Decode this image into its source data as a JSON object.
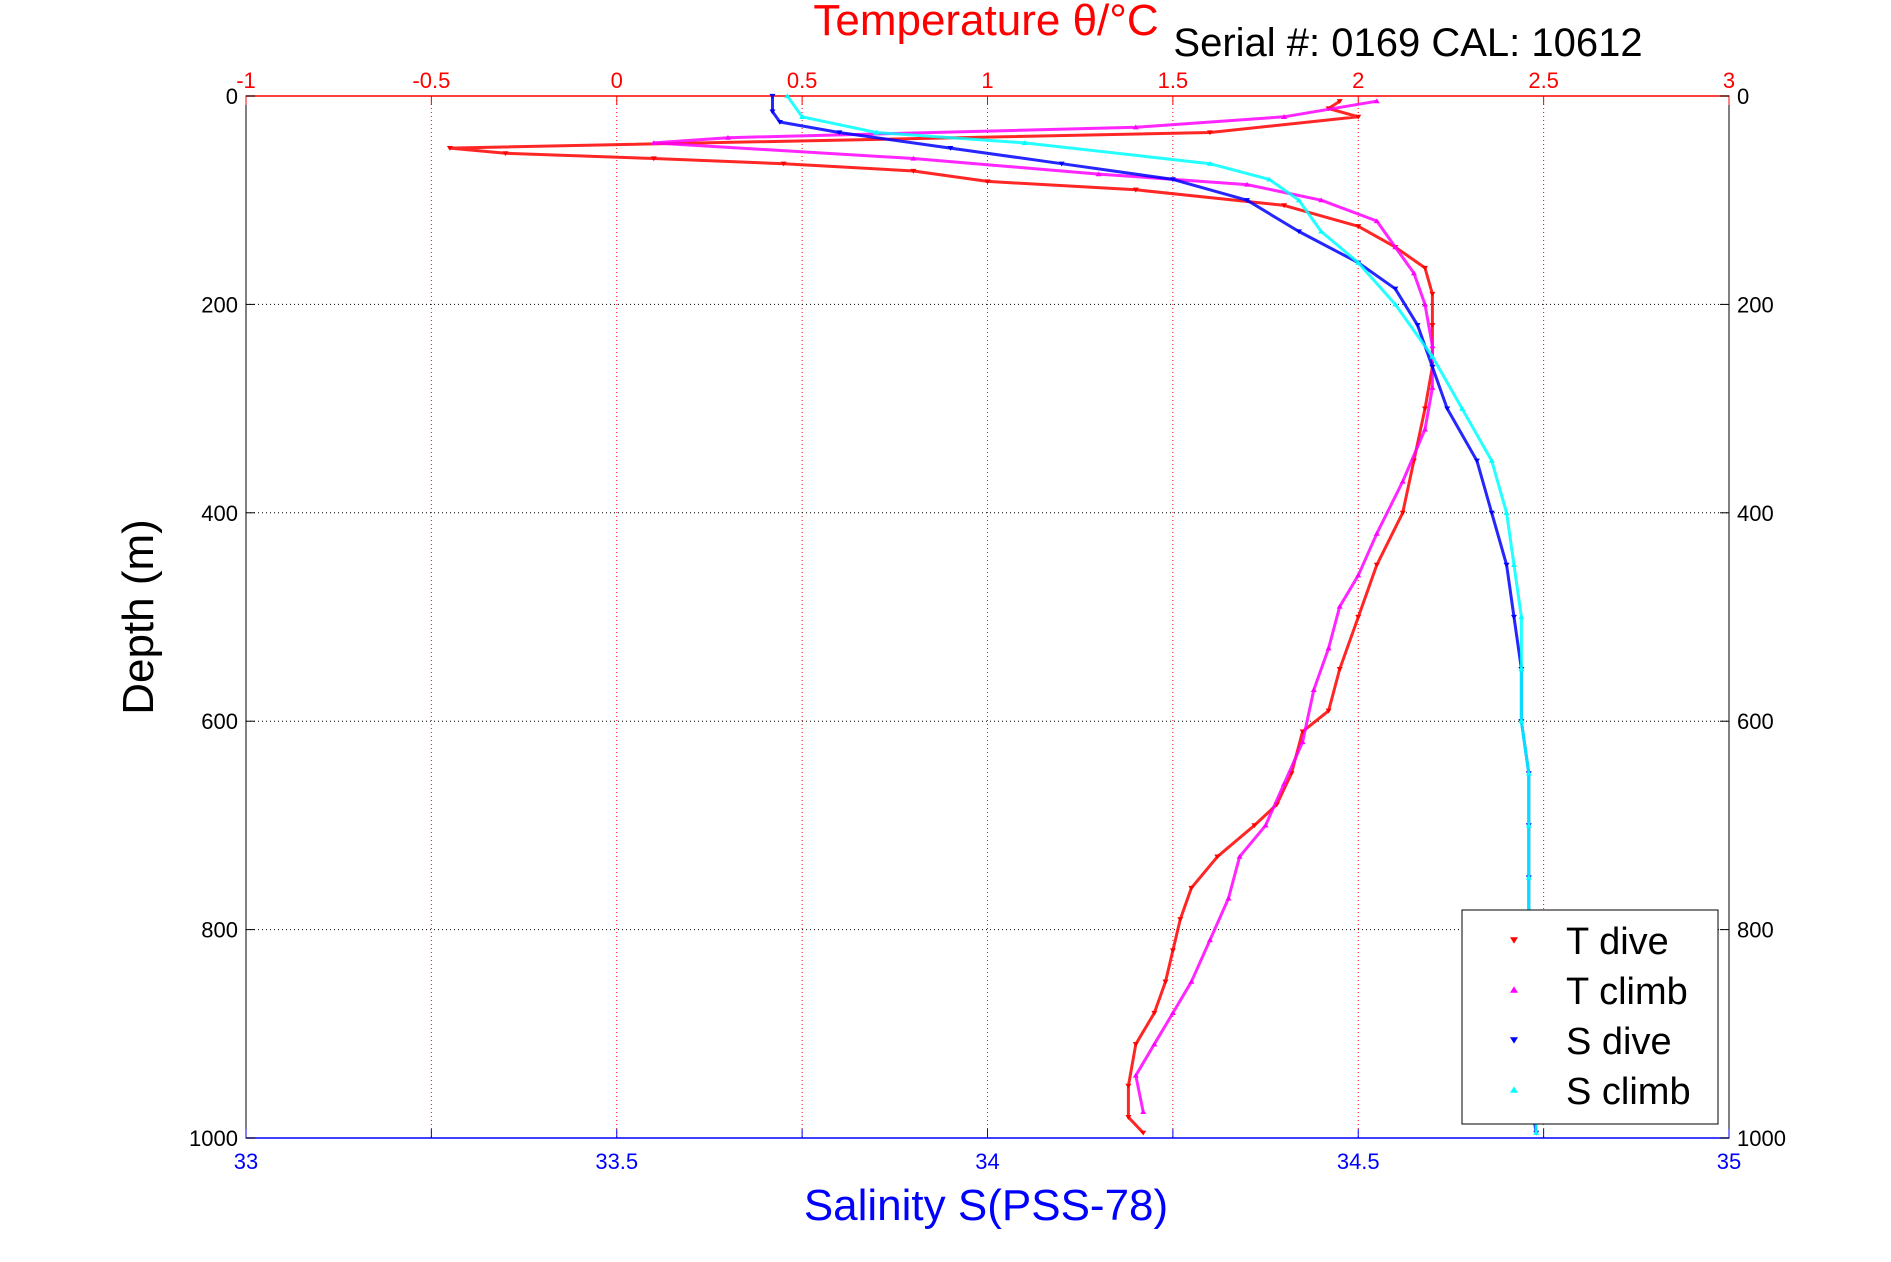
{
  "chart_data": {
    "type": "scatter",
    "title": "Temperature θ/°C",
    "subtitle": "Serial #: 0169 CAL: 10612",
    "xlabel": "Salinity S(PSS-78)",
    "ylabel": "Depth (m)",
    "top_axis": {
      "label": "Temperature θ/°C",
      "lim": [
        -1,
        3
      ],
      "ticks": [
        -1,
        -0.5,
        0,
        0.5,
        1,
        1.5,
        2,
        2.5,
        3
      ],
      "tick_labels": [
        "-1",
        "-0.5",
        "0",
        "0.5",
        "1",
        "1.5",
        "2",
        "2.5",
        "3"
      ],
      "color": "#ff0000"
    },
    "bottom_axis": {
      "label": "Salinity S(PSS-78)",
      "lim": [
        33,
        35
      ],
      "ticks": [
        33,
        33.5,
        34,
        34.5,
        35
      ],
      "tick_labels": [
        "33",
        "33.5",
        "34",
        "34.5",
        "35"
      ],
      "color": "#0000ff"
    },
    "y_axis": {
      "label": "Depth (m)",
      "lim": [
        0,
        1000
      ],
      "reversed": true,
      "ticks": [
        0,
        200,
        400,
        600,
        800,
        1000
      ],
      "tick_labels": [
        "0",
        "200",
        "400",
        "600",
        "800",
        "1000"
      ]
    },
    "grid": true,
    "legend_position": "bottom-right",
    "series": [
      {
        "name": "T dive",
        "axis": "top",
        "color": "#ff0000",
        "marker": "triangle-down",
        "points": [
          [
            1.95,
            5
          ],
          [
            1.92,
            12
          ],
          [
            2.0,
            20
          ],
          [
            1.6,
            35
          ],
          [
            -0.45,
            50
          ],
          [
            -0.3,
            55
          ],
          [
            0.1,
            60
          ],
          [
            0.45,
            65
          ],
          [
            0.8,
            72
          ],
          [
            1.0,
            82
          ],
          [
            1.4,
            90
          ],
          [
            1.8,
            105
          ],
          [
            2.0,
            125
          ],
          [
            2.1,
            145
          ],
          [
            2.18,
            165
          ],
          [
            2.2,
            190
          ],
          [
            2.2,
            220
          ],
          [
            2.2,
            260
          ],
          [
            2.18,
            300
          ],
          [
            2.15,
            350
          ],
          [
            2.12,
            400
          ],
          [
            2.05,
            450
          ],
          [
            2.0,
            500
          ],
          [
            1.95,
            550
          ],
          [
            1.92,
            590
          ],
          [
            1.85,
            610
          ],
          [
            1.82,
            650
          ],
          [
            1.78,
            680
          ],
          [
            1.72,
            700
          ],
          [
            1.62,
            730
          ],
          [
            1.55,
            760
          ],
          [
            1.52,
            790
          ],
          [
            1.5,
            820
          ],
          [
            1.48,
            850
          ],
          [
            1.45,
            880
          ],
          [
            1.4,
            910
          ],
          [
            1.38,
            950
          ],
          [
            1.38,
            980
          ],
          [
            1.42,
            995
          ]
        ]
      },
      {
        "name": "T climb",
        "axis": "top",
        "color": "#ff00ff",
        "marker": "triangle-up",
        "points": [
          [
            2.05,
            5
          ],
          [
            1.8,
            20
          ],
          [
            1.4,
            30
          ],
          [
            0.3,
            40
          ],
          [
            0.1,
            45
          ],
          [
            0.8,
            60
          ],
          [
            1.3,
            75
          ],
          [
            1.7,
            85
          ],
          [
            1.9,
            100
          ],
          [
            2.05,
            120
          ],
          [
            2.1,
            145
          ],
          [
            2.15,
            170
          ],
          [
            2.18,
            200
          ],
          [
            2.2,
            240
          ],
          [
            2.2,
            280
          ],
          [
            2.18,
            320
          ],
          [
            2.12,
            370
          ],
          [
            2.05,
            420
          ],
          [
            2.0,
            460
          ],
          [
            1.95,
            490
          ],
          [
            1.92,
            530
          ],
          [
            1.88,
            570
          ],
          [
            1.85,
            620
          ],
          [
            1.8,
            660
          ],
          [
            1.75,
            700
          ],
          [
            1.68,
            730
          ],
          [
            1.65,
            770
          ],
          [
            1.6,
            810
          ],
          [
            1.55,
            850
          ],
          [
            1.5,
            880
          ],
          [
            1.45,
            910
          ],
          [
            1.4,
            940
          ],
          [
            1.42,
            975
          ]
        ]
      },
      {
        "name": "S dive",
        "axis": "bottom",
        "color": "#0000ff",
        "marker": "triangle-down",
        "points": [
          [
            33.71,
            0
          ],
          [
            33.71,
            15
          ],
          [
            33.72,
            25
          ],
          [
            33.8,
            35
          ],
          [
            33.95,
            50
          ],
          [
            34.1,
            65
          ],
          [
            34.25,
            80
          ],
          [
            34.35,
            100
          ],
          [
            34.42,
            130
          ],
          [
            34.5,
            160
          ],
          [
            34.55,
            185
          ],
          [
            34.58,
            220
          ],
          [
            34.6,
            260
          ],
          [
            34.62,
            300
          ],
          [
            34.66,
            350
          ],
          [
            34.68,
            400
          ],
          [
            34.7,
            450
          ],
          [
            34.71,
            500
          ],
          [
            34.72,
            550
          ],
          [
            34.72,
            600
          ],
          [
            34.73,
            650
          ],
          [
            34.73,
            700
          ],
          [
            34.73,
            750
          ],
          [
            34.73,
            800
          ],
          [
            34.73,
            850
          ],
          [
            34.73,
            900
          ],
          [
            34.73,
            950
          ],
          [
            34.74,
            995
          ]
        ]
      },
      {
        "name": "S climb",
        "axis": "bottom",
        "color": "#00ffff",
        "marker": "triangle-up",
        "points": [
          [
            33.73,
            0
          ],
          [
            33.75,
            20
          ],
          [
            33.85,
            35
          ],
          [
            34.05,
            45
          ],
          [
            34.3,
            65
          ],
          [
            34.38,
            80
          ],
          [
            34.42,
            100
          ],
          [
            34.45,
            130
          ],
          [
            34.5,
            160
          ],
          [
            34.55,
            200
          ],
          [
            34.6,
            250
          ],
          [
            34.64,
            300
          ],
          [
            34.68,
            350
          ],
          [
            34.7,
            400
          ],
          [
            34.71,
            450
          ],
          [
            34.72,
            500
          ],
          [
            34.72,
            550
          ],
          [
            34.72,
            600
          ],
          [
            34.73,
            650
          ],
          [
            34.73,
            700
          ],
          [
            34.73,
            750
          ],
          [
            34.73,
            800
          ],
          [
            34.73,
            850
          ],
          [
            34.73,
            900
          ],
          [
            34.74,
            950
          ],
          [
            34.74,
            995
          ]
        ]
      }
    ]
  }
}
